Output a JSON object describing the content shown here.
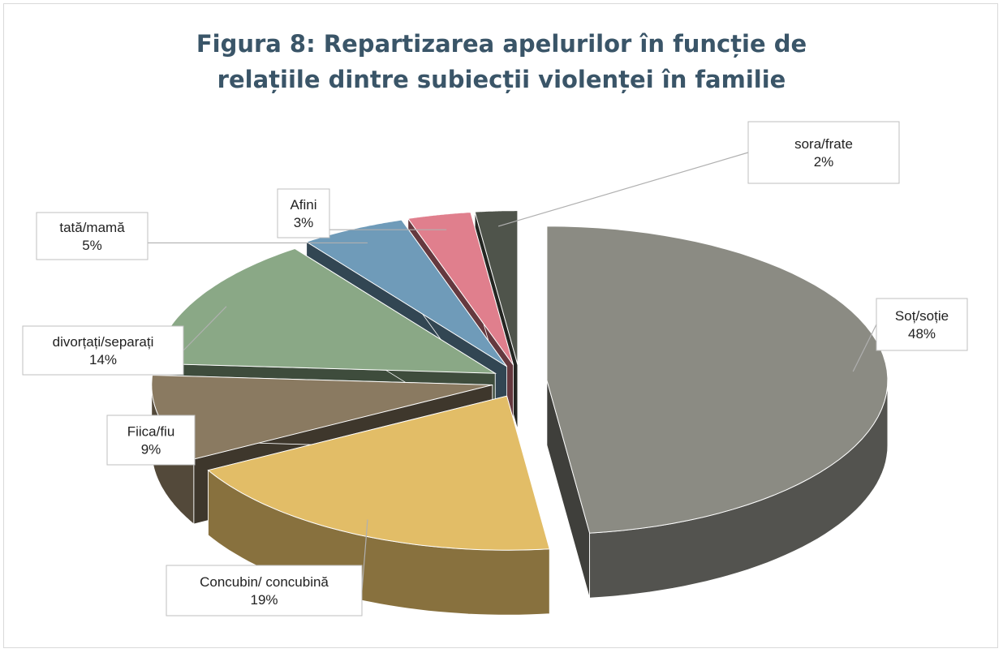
{
  "chart_data": {
    "type": "pie3d",
    "title": "Figura 8: Repartizarea apelurilor în funcție de relațiile dintre subiecții violenței în familie",
    "categories": [
      "Soț/soție",
      "Concubin/ concubină",
      "Fiica/fiu",
      "divorțați/separați",
      "tată/mamă",
      "Afini",
      "sora/frate"
    ],
    "values": [
      48,
      19,
      9,
      14,
      5,
      3,
      2
    ],
    "value_labels": [
      "48%",
      "19%",
      "9%",
      "14%",
      "5%",
      "3%",
      "2%"
    ],
    "colors": [
      "#8b8b83",
      "#e2bd67",
      "#8a7a61",
      "#8aa886",
      "#6f9bb9",
      "#e07f8d",
      "#4f544b"
    ]
  }
}
